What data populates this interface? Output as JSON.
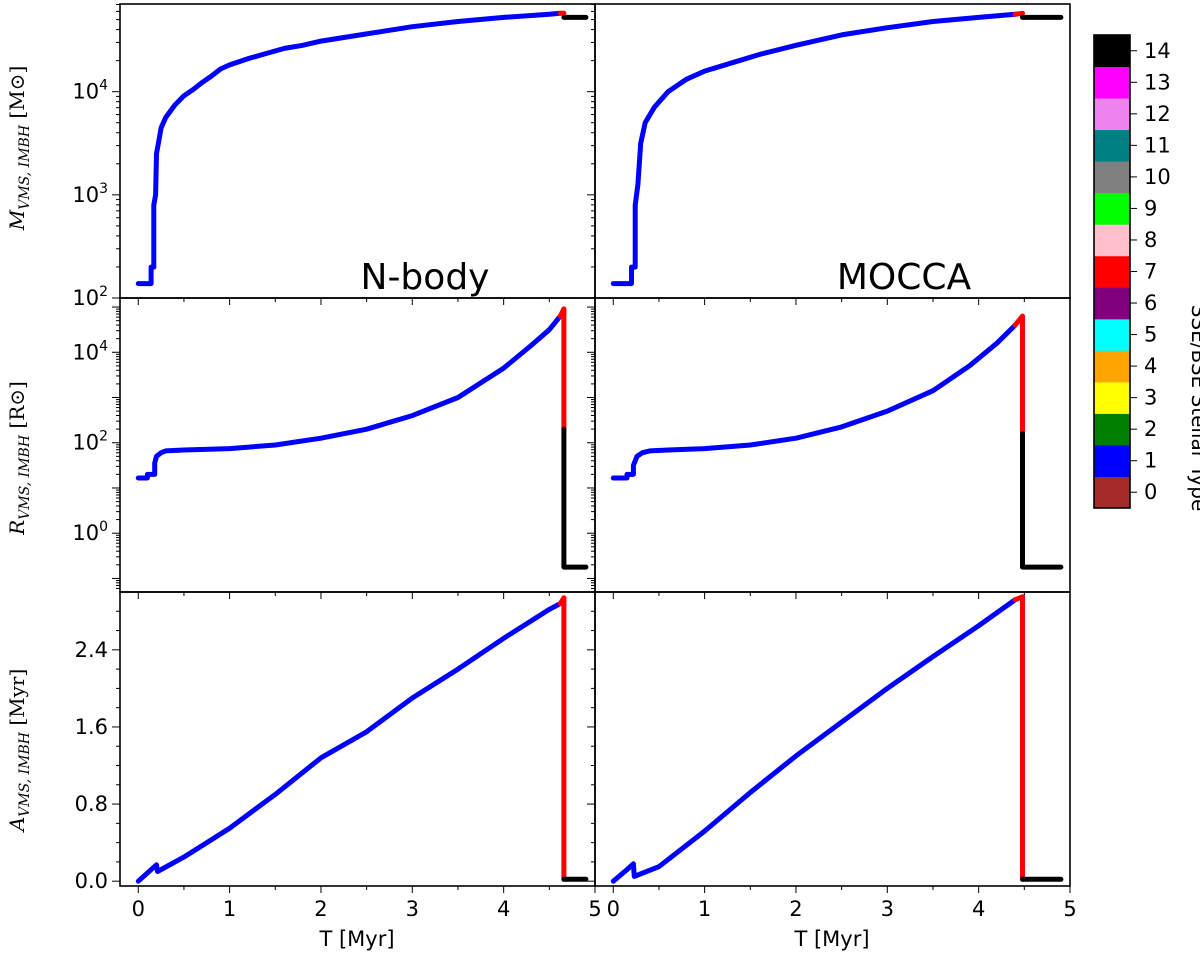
{
  "chart_data": {
    "type": "line",
    "figure": "VMS / IMBH mass, radius and age evolution",
    "columns": [
      {
        "label": "N-body",
        "t_collapse": 4.66
      },
      {
        "label": "MOCCA",
        "t_collapse": 4.48
      }
    ],
    "x": {
      "label": "T [Myr]",
      "range": [
        -0.2,
        5.0
      ],
      "ticks": [
        0,
        1,
        2,
        3,
        4,
        5
      ],
      "tick_labels": [
        "0",
        "1",
        "2",
        "3",
        "4",
        "5"
      ]
    },
    "rows": [
      {
        "key": "mass",
        "ylabel": "M_{VMS, IMBH} [M_⊙]",
        "ylabel_main": "M",
        "ylabel_sub": "VMS, IMBH",
        "ylabel_unit": " [M⊙]",
        "scale": "log",
        "ylim_log10": [
          2.0,
          4.85
        ],
        "ticks": [
          {
            "exp": 2,
            "label": "10",
            "sup": "2"
          },
          {
            "exp": 3,
            "label": "10",
            "sup": "3"
          },
          {
            "exp": 4,
            "label": "10",
            "sup": "4"
          }
        ]
      },
      {
        "key": "radius",
        "ylabel": "R_{VMS, IMBH} [R_⊙]",
        "ylabel_main": "R",
        "ylabel_sub": "VMS, IMBH",
        "ylabel_unit": " [R⊙]",
        "scale": "log",
        "ylim_log10": [
          -1.3,
          5.2
        ],
        "ticks": [
          {
            "exp": 0,
            "label": "10",
            "sup": "0"
          },
          {
            "exp": 2,
            "label": "10",
            "sup": "2"
          },
          {
            "exp": 4,
            "label": "10",
            "sup": "4"
          }
        ]
      },
      {
        "key": "age",
        "ylabel": "A_{VMS, IMBH} [Myr]",
        "ylabel_main": "A",
        "ylabel_sub": "VMS, IMBH",
        "ylabel_unit": " [Myr]",
        "scale": "linear",
        "ylim": [
          -0.05,
          3.0
        ],
        "ticks": [
          {
            "value": 0.0,
            "label": "0.0"
          },
          {
            "value": 0.8,
            "label": "0.8"
          },
          {
            "value": 1.6,
            "label": "1.6"
          },
          {
            "value": 2.4,
            "label": "2.4"
          }
        ]
      }
    ],
    "series": {
      "N-body": {
        "mass": [
          {
            "type": 1,
            "points": [
              [
                0.0,
                2.14
              ],
              [
                0.14,
                2.14
              ],
              [
                0.14,
                2.3
              ],
              [
                0.17,
                2.3
              ],
              [
                0.17,
                2.9
              ],
              [
                0.19,
                3.0
              ],
              [
                0.2,
                3.4
              ],
              [
                0.22,
                3.5
              ],
              [
                0.25,
                3.65
              ],
              [
                0.3,
                3.75
              ],
              [
                0.4,
                3.87
              ],
              [
                0.5,
                3.96
              ],
              [
                0.6,
                4.02
              ],
              [
                0.7,
                4.09
              ],
              [
                0.8,
                4.15
              ],
              [
                0.9,
                4.22
              ],
              [
                1.0,
                4.26
              ],
              [
                1.2,
                4.32
              ],
              [
                1.4,
                4.37
              ],
              [
                1.6,
                4.42
              ],
              [
                1.8,
                4.45
              ],
              [
                2.0,
                4.49
              ],
              [
                2.5,
                4.56
              ],
              [
                3.0,
                4.63
              ],
              [
                3.5,
                4.68
              ],
              [
                4.0,
                4.72
              ],
              [
                4.5,
                4.75
              ],
              [
                4.62,
                4.76
              ]
            ]
          },
          {
            "type": 7,
            "points": [
              [
                4.62,
                4.76
              ],
              [
                4.66,
                4.76
              ]
            ]
          },
          {
            "type": 14,
            "points": [
              [
                4.66,
                4.72
              ],
              [
                4.9,
                4.72
              ]
            ]
          }
        ],
        "radius": [
          {
            "type": 1,
            "points": [
              [
                0.0,
                1.22
              ],
              [
                0.1,
                1.22
              ],
              [
                0.1,
                1.3
              ],
              [
                0.18,
                1.3
              ],
              [
                0.18,
                1.55
              ],
              [
                0.2,
                1.7
              ],
              [
                0.25,
                1.78
              ],
              [
                0.3,
                1.82
              ],
              [
                0.5,
                1.84
              ],
              [
                1.0,
                1.87
              ],
              [
                1.5,
                1.95
              ],
              [
                2.0,
                2.1
              ],
              [
                2.5,
                2.3
              ],
              [
                3.0,
                2.6
              ],
              [
                3.5,
                3.0
              ],
              [
                4.0,
                3.65
              ],
              [
                4.3,
                4.15
              ],
              [
                4.5,
                4.5
              ],
              [
                4.62,
                4.8
              ]
            ]
          },
          {
            "type": 7,
            "points": [
              [
                4.62,
                4.8
              ],
              [
                4.66,
                4.96
              ],
              [
                4.66,
                2.3
              ]
            ]
          },
          {
            "type": 14,
            "points": [
              [
                4.66,
                2.3
              ],
              [
                4.66,
                -0.75
              ],
              [
                4.9,
                -0.75
              ]
            ]
          }
        ],
        "age": [
          {
            "type": 1,
            "points": [
              [
                0.0,
                0.0
              ],
              [
                0.2,
                0.17
              ],
              [
                0.21,
                0.1
              ],
              [
                0.5,
                0.25
              ],
              [
                1.0,
                0.55
              ],
              [
                1.5,
                0.9
              ],
              [
                2.0,
                1.28
              ],
              [
                2.5,
                1.55
              ],
              [
                3.0,
                1.9
              ],
              [
                3.5,
                2.2
              ],
              [
                4.0,
                2.52
              ],
              [
                4.5,
                2.82
              ],
              [
                4.62,
                2.88
              ]
            ]
          },
          {
            "type": 7,
            "points": [
              [
                4.62,
                2.88
              ],
              [
                4.66,
                2.94
              ],
              [
                4.66,
                0.02
              ]
            ]
          },
          {
            "type": 14,
            "points": [
              [
                4.66,
                0.02
              ],
              [
                4.9,
                0.02
              ]
            ]
          }
        ]
      },
      "MOCCA": {
        "mass": [
          {
            "type": 1,
            "points": [
              [
                0.0,
                2.14
              ],
              [
                0.2,
                2.14
              ],
              [
                0.2,
                2.3
              ],
              [
                0.24,
                2.3
              ],
              [
                0.24,
                2.9
              ],
              [
                0.27,
                3.1
              ],
              [
                0.3,
                3.5
              ],
              [
                0.35,
                3.7
              ],
              [
                0.45,
                3.85
              ],
              [
                0.6,
                4.0
              ],
              [
                0.8,
                4.12
              ],
              [
                1.0,
                4.2
              ],
              [
                1.3,
                4.28
              ],
              [
                1.6,
                4.36
              ],
              [
                2.0,
                4.45
              ],
              [
                2.5,
                4.55
              ],
              [
                3.0,
                4.62
              ],
              [
                3.5,
                4.68
              ],
              [
                4.0,
                4.72
              ],
              [
                4.4,
                4.75
              ]
            ]
          },
          {
            "type": 7,
            "points": [
              [
                4.4,
                4.75
              ],
              [
                4.48,
                4.76
              ]
            ]
          },
          {
            "type": 14,
            "points": [
              [
                4.48,
                4.72
              ],
              [
                4.9,
                4.72
              ]
            ]
          }
        ],
        "radius": [
          {
            "type": 1,
            "points": [
              [
                0.0,
                1.22
              ],
              [
                0.15,
                1.22
              ],
              [
                0.15,
                1.3
              ],
              [
                0.22,
                1.3
              ],
              [
                0.22,
                1.5
              ],
              [
                0.26,
                1.7
              ],
              [
                0.32,
                1.78
              ],
              [
                0.4,
                1.82
              ],
              [
                0.6,
                1.84
              ],
              [
                1.0,
                1.87
              ],
              [
                1.5,
                1.95
              ],
              [
                2.0,
                2.1
              ],
              [
                2.5,
                2.35
              ],
              [
                3.0,
                2.7
              ],
              [
                3.5,
                3.15
              ],
              [
                3.9,
                3.7
              ],
              [
                4.2,
                4.2
              ],
              [
                4.4,
                4.6
              ]
            ]
          },
          {
            "type": 7,
            "points": [
              [
                4.4,
                4.6
              ],
              [
                4.48,
                4.8
              ],
              [
                4.48,
                2.2
              ]
            ]
          },
          {
            "type": 14,
            "points": [
              [
                4.48,
                2.2
              ],
              [
                4.48,
                -0.75
              ],
              [
                4.9,
                -0.75
              ]
            ]
          }
        ],
        "age": [
          {
            "type": 1,
            "points": [
              [
                0.0,
                0.0
              ],
              [
                0.15,
                0.12
              ],
              [
                0.22,
                0.18
              ],
              [
                0.23,
                0.05
              ],
              [
                0.5,
                0.15
              ],
              [
                1.0,
                0.52
              ],
              [
                1.5,
                0.92
              ],
              [
                2.0,
                1.3
              ],
              [
                2.5,
                1.65
              ],
              [
                3.0,
                2.0
              ],
              [
                3.5,
                2.33
              ],
              [
                4.0,
                2.65
              ],
              [
                4.4,
                2.92
              ]
            ]
          },
          {
            "type": 7,
            "points": [
              [
                4.4,
                2.92
              ],
              [
                4.48,
                2.95
              ],
              [
                4.48,
                0.02
              ]
            ]
          },
          {
            "type": 14,
            "points": [
              [
                4.48,
                0.02
              ],
              [
                4.9,
                0.02
              ]
            ]
          }
        ]
      }
    },
    "colorbar": {
      "label": "SSE/BSE Stellar Type",
      "types": [
        {
          "value": 0,
          "label": "0",
          "color": "#a52a2a"
        },
        {
          "value": 1,
          "label": "1",
          "color": "#0000ff"
        },
        {
          "value": 2,
          "label": "2",
          "color": "#008000"
        },
        {
          "value": 3,
          "label": "3",
          "color": "#ffff00"
        },
        {
          "value": 4,
          "label": "4",
          "color": "#ffa500"
        },
        {
          "value": 5,
          "label": "5",
          "color": "#00ffff"
        },
        {
          "value": 6,
          "label": "6",
          "color": "#800080"
        },
        {
          "value": 7,
          "label": "7",
          "color": "#ff0000"
        },
        {
          "value": 8,
          "label": "8",
          "color": "#ffc0cb"
        },
        {
          "value": 9,
          "label": "9",
          "color": "#00ff00"
        },
        {
          "value": 10,
          "label": "10",
          "color": "#808080"
        },
        {
          "value": 11,
          "label": "11",
          "color": "#008080"
        },
        {
          "value": 12,
          "label": "12",
          "color": "#ee82ee"
        },
        {
          "value": 13,
          "label": "13",
          "color": "#ff00ff"
        },
        {
          "value": 14,
          "label": "14",
          "color": "#000000"
        }
      ]
    }
  }
}
